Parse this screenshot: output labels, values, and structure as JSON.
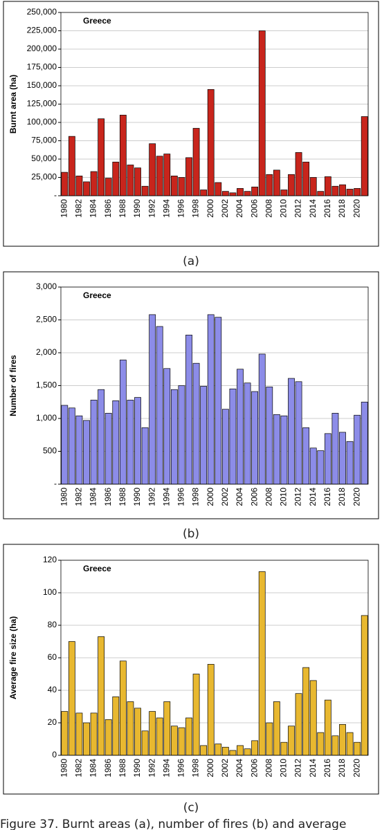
{
  "chart_data": [
    {
      "type": "bar",
      "title": "Greece",
      "ylabel": "Burnt area (ha)",
      "caption": "(a)",
      "color": "#c8251c",
      "grid": true,
      "categories": [
        "1980",
        null,
        "1982",
        null,
        "1984",
        null,
        "1986",
        null,
        "1988",
        null,
        "1990",
        null,
        "1992",
        null,
        "1994",
        null,
        "1996",
        null,
        "1998",
        null,
        "2000",
        null,
        "2002",
        null,
        "2004",
        null,
        "2006",
        null,
        "2008",
        null,
        "2010",
        null,
        "2012",
        null,
        "2014",
        null,
        "2016",
        null,
        "2018",
        null,
        "2020",
        null
      ],
      "values": [
        32000,
        81000,
        27000,
        19000,
        33000,
        105000,
        24000,
        46000,
        110000,
        42000,
        38000,
        13000,
        71000,
        54000,
        57000,
        27000,
        25000,
        52000,
        92000,
        8000,
        145000,
        18000,
        6000,
        4000,
        10000,
        6000,
        12000,
        225000,
        29000,
        35000,
        8000,
        29000,
        59000,
        46000,
        25000,
        6000,
        26000,
        13000,
        15000,
        9000,
        10000,
        108000
      ],
      "ylim": [
        0,
        250000
      ],
      "yticks": [
        {
          "value": 0,
          "label": "-"
        },
        {
          "value": 25000,
          "label": "25,000"
        },
        {
          "value": 50000,
          "label": "50,000"
        },
        {
          "value": 75000,
          "label": "75,000"
        },
        {
          "value": 100000,
          "label": "100,000"
        },
        {
          "value": 125000,
          "label": "125,000"
        },
        {
          "value": 150000,
          "label": "150,000"
        },
        {
          "value": 175000,
          "label": "175,000"
        },
        {
          "value": 200000,
          "label": "200,000"
        },
        {
          "value": 225000,
          "label": "225,000"
        },
        {
          "value": 250000,
          "label": "250,000"
        }
      ]
    },
    {
      "type": "bar",
      "title": "Greece",
      "ylabel": "Number of fires",
      "caption": "(b)",
      "color": "#8c8ce8",
      "grid": true,
      "categories": [
        "1980",
        null,
        "1982",
        null,
        "1984",
        null,
        "1986",
        null,
        "1988",
        null,
        "1990",
        null,
        "1992",
        null,
        "1994",
        null,
        "1996",
        null,
        "1998",
        null,
        "2000",
        null,
        "2002",
        null,
        "2004",
        null,
        "2006",
        null,
        "2008",
        null,
        "2010",
        null,
        "2012",
        null,
        "2014",
        null,
        "2016",
        null,
        "2018",
        null,
        "2020",
        null
      ],
      "values": [
        1200,
        1160,
        1040,
        970,
        1280,
        1440,
        1080,
        1270,
        1890,
        1280,
        1320,
        860,
        2580,
        2400,
        1760,
        1440,
        1500,
        2270,
        1840,
        1490,
        2580,
        2540,
        1140,
        1450,
        1750,
        1540,
        1410,
        1980,
        1480,
        1060,
        1040,
        1610,
        1560,
        860,
        550,
        510,
        770,
        1080,
        790,
        650,
        1050,
        1250
      ],
      "ylim": [
        0,
        3000
      ],
      "yticks": [
        {
          "value": 0,
          "label": "-"
        },
        500,
        {
          "value": 1000,
          "label": "1,000"
        },
        {
          "value": 1500,
          "label": "1,500"
        },
        {
          "value": 2000,
          "label": "2,000"
        },
        {
          "value": 2500,
          "label": "2,500"
        },
        {
          "value": 3000,
          "label": "3,000"
        }
      ]
    },
    {
      "type": "bar",
      "title": "Greece",
      "ylabel": "Average fire size (ha)",
      "caption": "(c)",
      "color": "#e8b830",
      "grid": true,
      "categories": [
        "1980",
        null,
        "1982",
        null,
        "1984",
        null,
        "1986",
        null,
        "1988",
        null,
        "1990",
        null,
        "1992",
        null,
        "1994",
        null,
        "1996",
        null,
        "1998",
        null,
        "2000",
        null,
        "2002",
        null,
        "2004",
        null,
        "2006",
        null,
        "2008",
        null,
        "2010",
        null,
        "2012",
        null,
        "2014",
        null,
        "2016",
        null,
        "2018",
        null,
        "2020",
        null
      ],
      "values": [
        27,
        70,
        26,
        20,
        26,
        73,
        22,
        36,
        58,
        33,
        29,
        15,
        27,
        23,
        33,
        18,
        17,
        23,
        50,
        6,
        56,
        7,
        5,
        3,
        6,
        4,
        9,
        113,
        20,
        33,
        8,
        18,
        38,
        54,
        46,
        14,
        34,
        12,
        19,
        14,
        8,
        86
      ],
      "ylim": [
        0,
        120
      ],
      "yticks": [
        0,
        20,
        40,
        60,
        80,
        100,
        120
      ]
    }
  ],
  "figure_caption": "Figure 37. Burnt areas (a), number of fires (b) and average"
}
